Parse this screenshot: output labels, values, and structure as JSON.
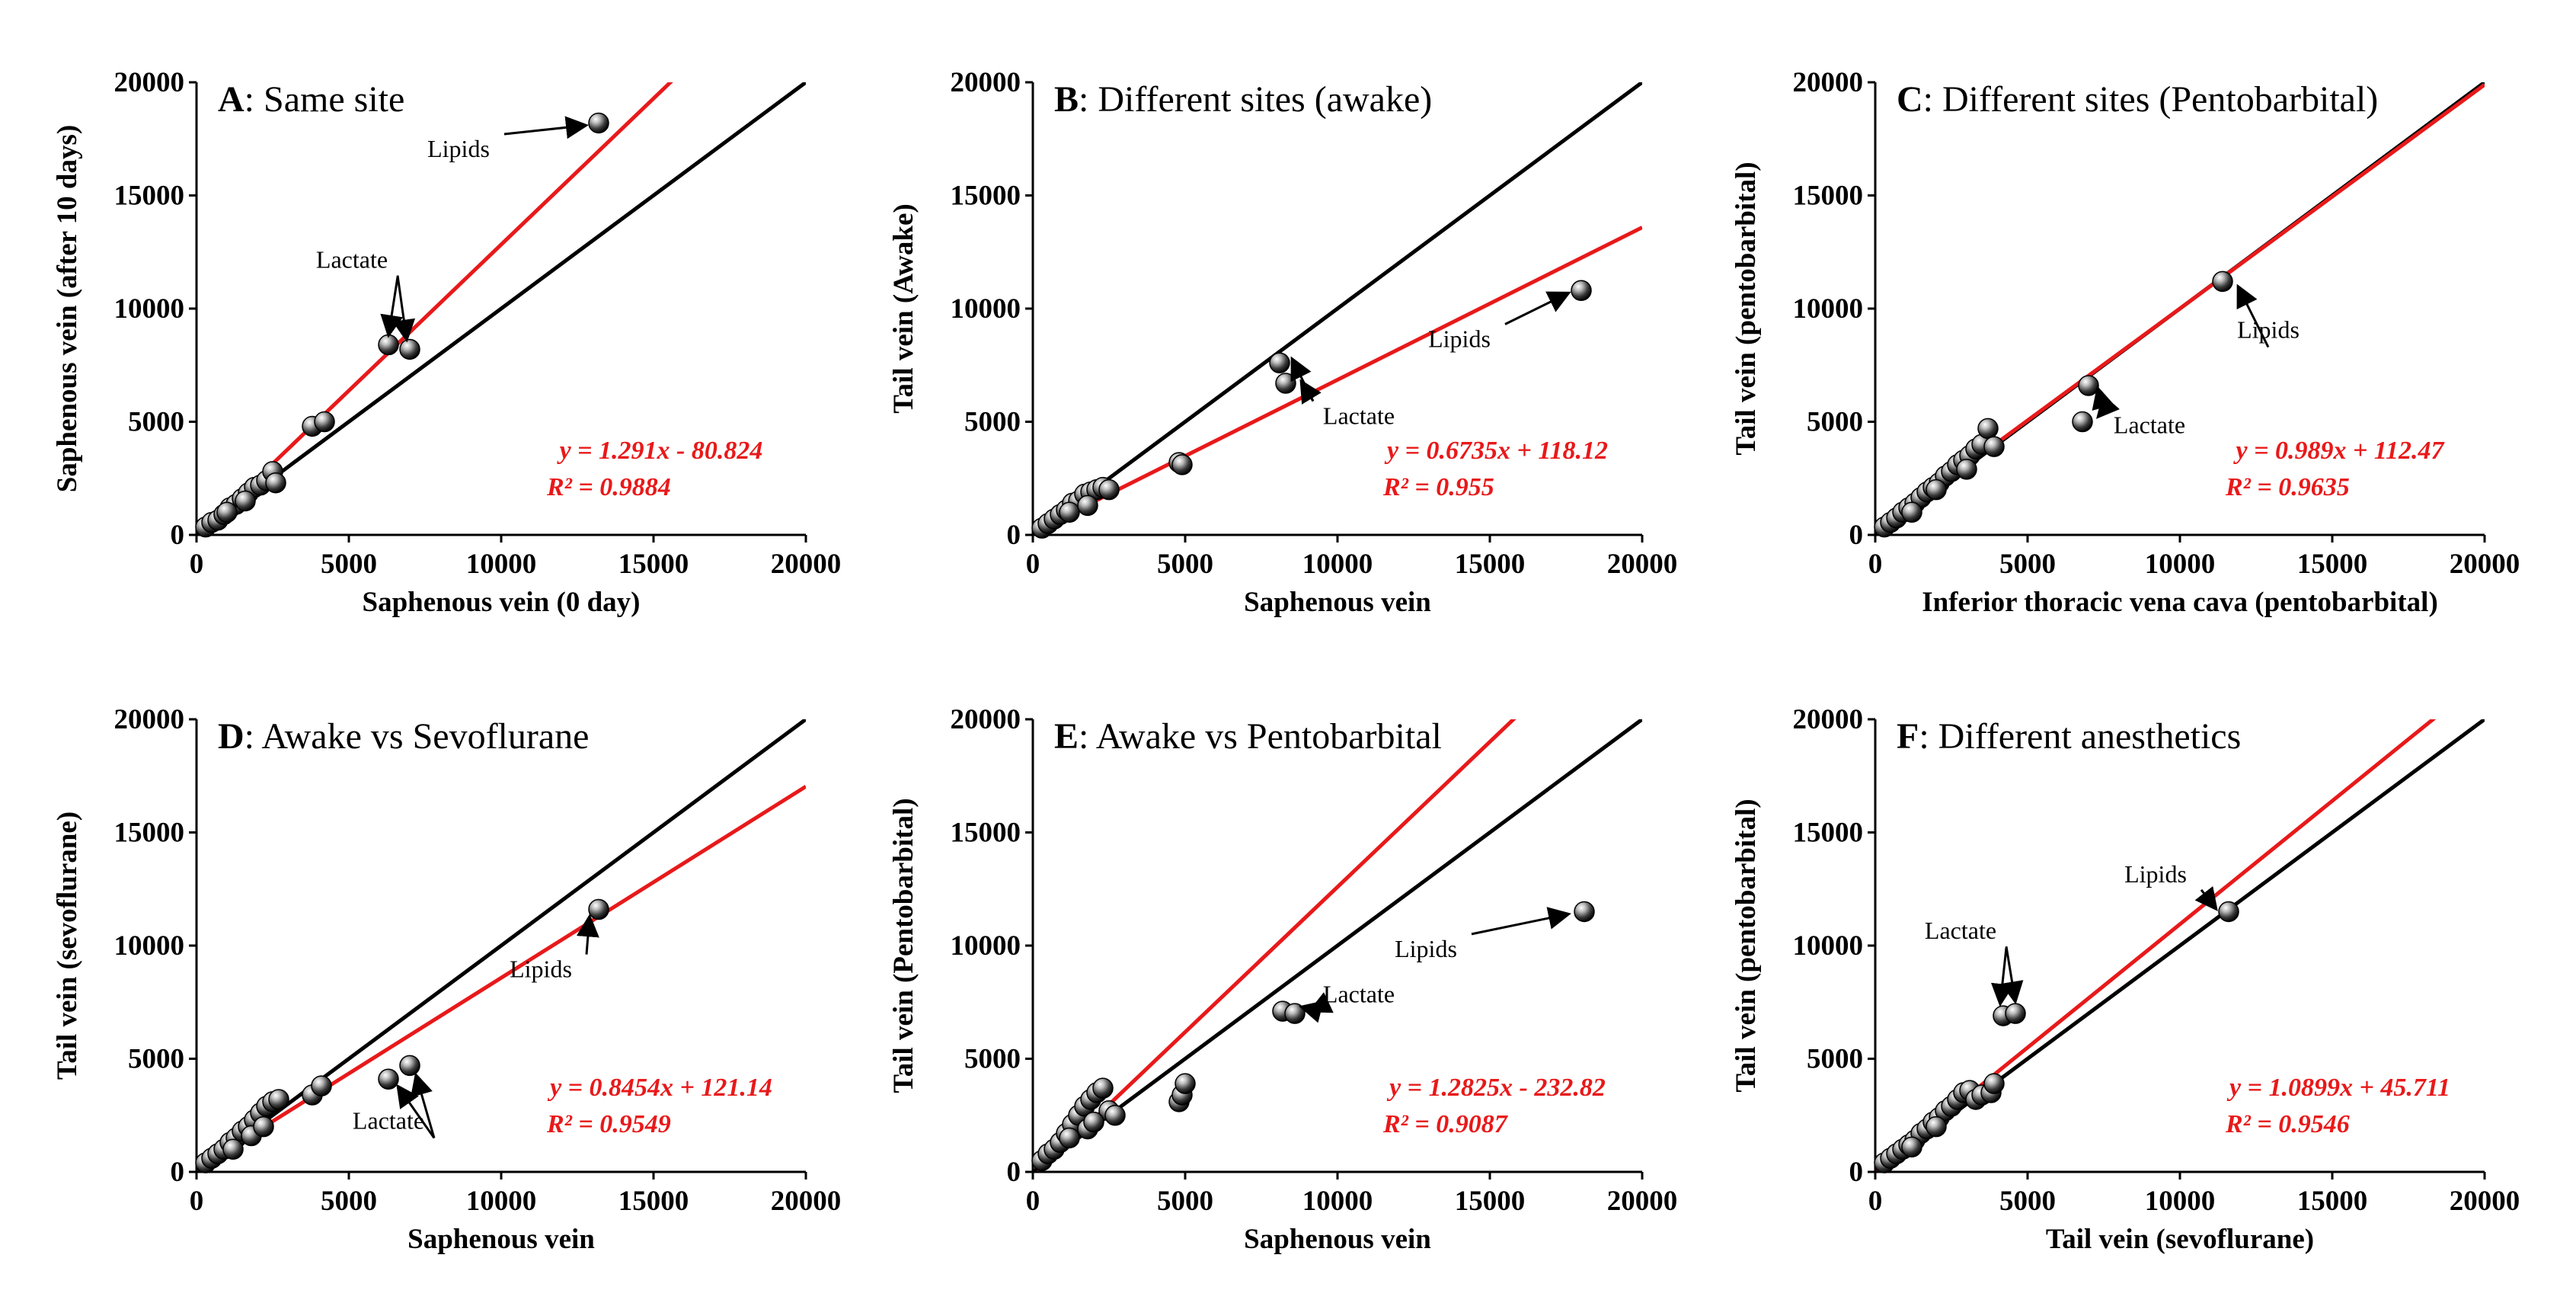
{
  "chart_data": [
    {
      "type": "scatter",
      "panel": "A",
      "title_letter": "A",
      "title_text": ": Same site",
      "xlabel": "Saphenous vein (0 day)",
      "ylabel": "Saphenous vein (after 10 days)",
      "xlim": [
        0,
        20000
      ],
      "ylim": [
        0,
        20000
      ],
      "xticks": [
        "0",
        "5000",
        "10000",
        "15000",
        "20000"
      ],
      "yticks": [
        "0",
        "5000",
        "10000",
        "15000",
        "20000"
      ],
      "identity_line": true,
      "fit": {
        "slope": 1.291,
        "intercept": -80.824
      },
      "equation": "y = 1.291x - 80.824",
      "r2": "R² = 0.9884",
      "points": [
        [
          300,
          350
        ],
        [
          500,
          550
        ],
        [
          700,
          650
        ],
        [
          900,
          900
        ],
        [
          1100,
          1200
        ],
        [
          1300,
          1350
        ],
        [
          1500,
          1600
        ],
        [
          1700,
          1850
        ],
        [
          1900,
          2100
        ],
        [
          2100,
          2200
        ],
        [
          2300,
          2400
        ],
        [
          2500,
          2800
        ],
        [
          2600,
          2300
        ],
        [
          1000,
          1000
        ],
        [
          1600,
          1500
        ],
        [
          3800,
          4800
        ],
        [
          4200,
          5000
        ],
        [
          6300,
          8400
        ],
        [
          7000,
          8200
        ],
        [
          13200,
          18200
        ]
      ],
      "annotations": [
        {
          "label": "Lipids",
          "text_x": 8600,
          "text_y": 16700,
          "targets": [
            [
              12800,
              18100
            ]
          ]
        },
        {
          "label": "Lactate",
          "text_x": 5100,
          "text_y": 11800,
          "targets": [
            [
              6300,
              8800
            ],
            [
              6900,
              8600
            ]
          ]
        }
      ]
    },
    {
      "type": "scatter",
      "panel": "B",
      "title_letter": "B",
      "title_text": ": Different sites (awake)",
      "xlabel": "Saphenous vein",
      "ylabel": "Tail vein (Awake)",
      "xlim": [
        0,
        20000
      ],
      "ylim": [
        0,
        20000
      ],
      "xticks": [
        "0",
        "5000",
        "10000",
        "15000",
        "20000"
      ],
      "yticks": [
        "0",
        "5000",
        "10000",
        "15000",
        "20000"
      ],
      "identity_line": true,
      "fit": {
        "slope": 0.6735,
        "intercept": 118.12
      },
      "equation": "y = 0.6735x + 118.12",
      "r2": "R² = 0.955",
      "points": [
        [
          300,
          300
        ],
        [
          500,
          500
        ],
        [
          700,
          700
        ],
        [
          900,
          900
        ],
        [
          1100,
          1100
        ],
        [
          1300,
          1400
        ],
        [
          1500,
          1500
        ],
        [
          1700,
          1800
        ],
        [
          1900,
          1900
        ],
        [
          2100,
          2000
        ],
        [
          2300,
          2100
        ],
        [
          2500,
          2000
        ],
        [
          1200,
          1000
        ],
        [
          1800,
          1300
        ],
        [
          4800,
          3200
        ],
        [
          4900,
          3100
        ],
        [
          8100,
          7600
        ],
        [
          8300,
          6700
        ],
        [
          18000,
          10800
        ]
      ],
      "annotations": [
        {
          "label": "Lipids",
          "text_x": 14000,
          "text_y": 8300,
          "targets": [
            [
              17600,
              10700
            ]
          ]
        },
        {
          "label": "Lactate",
          "text_x": 10700,
          "text_y": 4900,
          "targets": [
            [
              8500,
              7800
            ],
            [
              8800,
              6800
            ]
          ]
        }
      ]
    },
    {
      "type": "scatter",
      "panel": "C",
      "title_letter": "C",
      "title_text": ": Different sites (Pentobarbital)",
      "xlabel": "Inferior thoracic vena cava (pentobarbital)",
      "ylabel": "Tail vein (pentobarbital)",
      "xlim": [
        0,
        20000
      ],
      "ylim": [
        0,
        20000
      ],
      "xticks": [
        "0",
        "5000",
        "10000",
        "15000",
        "20000"
      ],
      "yticks": [
        "0",
        "5000",
        "10000",
        "15000",
        "20000"
      ],
      "identity_line": true,
      "fit": {
        "slope": 0.989,
        "intercept": 112.47
      },
      "equation": "y = 0.989x + 112.47",
      "r2": "R² = 0.9635",
      "points": [
        [
          300,
          350
        ],
        [
          500,
          550
        ],
        [
          700,
          750
        ],
        [
          900,
          1000
        ],
        [
          1100,
          1200
        ],
        [
          1300,
          1400
        ],
        [
          1500,
          1650
        ],
        [
          1700,
          1900
        ],
        [
          1900,
          2100
        ],
        [
          2100,
          2300
        ],
        [
          2300,
          2600
        ],
        [
          2500,
          2800
        ],
        [
          2700,
          3100
        ],
        [
          2900,
          3300
        ],
        [
          3100,
          3500
        ],
        [
          3300,
          3800
        ],
        [
          3500,
          4000
        ],
        [
          3700,
          4700
        ],
        [
          3900,
          3900
        ],
        [
          1200,
          1000
        ],
        [
          2000,
          2000
        ],
        [
          3000,
          2900
        ],
        [
          6800,
          5000
        ],
        [
          7000,
          6600
        ],
        [
          11400,
          11200
        ]
      ],
      "annotations": [
        {
          "label": "Lipids",
          "text_x": 12900,
          "text_y": 8700,
          "targets": [
            [
              11900,
              11000
            ]
          ]
        },
        {
          "label": "Lactate",
          "text_x": 9000,
          "text_y": 4500,
          "targets": [
            [
              7300,
              6500
            ],
            [
              7300,
              5200
            ]
          ]
        }
      ]
    },
    {
      "type": "scatter",
      "panel": "D",
      "title_letter": "D",
      "title_text": ": Awake vs Sevoflurane",
      "xlabel": "Saphenous vein",
      "ylabel": "Tail vein (sevoflurane)",
      "xlim": [
        0,
        20000
      ],
      "ylim": [
        0,
        20000
      ],
      "xticks": [
        "0",
        "5000",
        "10000",
        "15000",
        "20000"
      ],
      "yticks": [
        "0",
        "5000",
        "10000",
        "15000",
        "20000"
      ],
      "identity_line": true,
      "fit": {
        "slope": 0.8454,
        "intercept": 121.14
      },
      "equation": "y = 0.8454x + 121.14",
      "r2": "R² = 0.9549",
      "points": [
        [
          300,
          400
        ],
        [
          500,
          600
        ],
        [
          700,
          800
        ],
        [
          900,
          1000
        ],
        [
          1100,
          1300
        ],
        [
          1300,
          1500
        ],
        [
          1500,
          1800
        ],
        [
          1700,
          2000
        ],
        [
          1900,
          2300
        ],
        [
          2100,
          2600
        ],
        [
          2300,
          2900
        ],
        [
          2500,
          3100
        ],
        [
          2700,
          3200
        ],
        [
          1200,
          1000
        ],
        [
          1800,
          1600
        ],
        [
          2200,
          2000
        ],
        [
          3800,
          3400
        ],
        [
          4100,
          3800
        ],
        [
          6300,
          4100
        ],
        [
          7000,
          4700
        ],
        [
          13200,
          11600
        ]
      ],
      "annotations": [
        {
          "label": "Lipids",
          "text_x": 11300,
          "text_y": 8600,
          "targets": [
            [
              12900,
              11300
            ]
          ]
        },
        {
          "label": "Lactate",
          "text_x": 6300,
          "text_y": 1900,
          "targets": [
            [
              6600,
              3800
            ],
            [
              7200,
              4300
            ]
          ]
        }
      ]
    },
    {
      "type": "scatter",
      "panel": "E",
      "title_letter": "E",
      "title_text": ": Awake vs Pentobarbital",
      "xlabel": "Saphenous vein",
      "ylabel": "Tail vein (Pentobarbital)",
      "xlim": [
        0,
        20000
      ],
      "ylim": [
        0,
        20000
      ],
      "xticks": [
        "0",
        "5000",
        "10000",
        "15000",
        "20000"
      ],
      "yticks": [
        "0",
        "5000",
        "10000",
        "15000",
        "20000"
      ],
      "identity_line": true,
      "fit": {
        "slope": 1.2825,
        "intercept": -232.82
      },
      "equation": "y = 1.2825x - 232.82",
      "r2": "R² = 0.9087",
      "points": [
        [
          300,
          500
        ],
        [
          500,
          800
        ],
        [
          700,
          1000
        ],
        [
          900,
          1300
        ],
        [
          1100,
          1700
        ],
        [
          1300,
          2100
        ],
        [
          1500,
          2500
        ],
        [
          1700,
          2900
        ],
        [
          1900,
          3200
        ],
        [
          2100,
          3500
        ],
        [
          2300,
          3700
        ],
        [
          2500,
          2700
        ],
        [
          2700,
          2500
        ],
        [
          1200,
          1500
        ],
        [
          1800,
          1900
        ],
        [
          2000,
          2200
        ],
        [
          4800,
          3100
        ],
        [
          4900,
          3400
        ],
        [
          5000,
          3900
        ],
        [
          8200,
          7100
        ],
        [
          8600,
          7000
        ],
        [
          18100,
          11500
        ]
      ],
      "annotations": [
        {
          "label": "Lipids",
          "text_x": 12900,
          "text_y": 9500,
          "targets": [
            [
              17600,
              11400
            ]
          ]
        },
        {
          "label": "Lactate",
          "text_x": 10700,
          "text_y": 7500,
          "targets": [
            [
              8800,
              7300
            ],
            [
              9100,
              7100
            ]
          ]
        }
      ]
    },
    {
      "type": "scatter",
      "panel": "F",
      "title_letter": "F",
      "title_text": ": Different anesthetics",
      "xlabel": "Tail vein (sevoflurane)",
      "ylabel": "Tail vein (pentobarbital)",
      "xlim": [
        0,
        20000
      ],
      "ylim": [
        0,
        20000
      ],
      "xticks": [
        "0",
        "5000",
        "10000",
        "15000",
        "20000"
      ],
      "yticks": [
        "0",
        "5000",
        "10000",
        "15000",
        "20000"
      ],
      "identity_line": true,
      "fit": {
        "slope": 1.0899,
        "intercept": 45.711
      },
      "equation": "y = 1.0899x + 45.711",
      "r2": "R² = 0.9546",
      "points": [
        [
          300,
          400
        ],
        [
          500,
          600
        ],
        [
          700,
          800
        ],
        [
          900,
          1000
        ],
        [
          1100,
          1200
        ],
        [
          1300,
          1400
        ],
        [
          1500,
          1700
        ],
        [
          1700,
          1900
        ],
        [
          1900,
          2200
        ],
        [
          2100,
          2400
        ],
        [
          2300,
          2700
        ],
        [
          2500,
          2900
        ],
        [
          2700,
          3200
        ],
        [
          2900,
          3500
        ],
        [
          3100,
          3600
        ],
        [
          3300,
          3200
        ],
        [
          3500,
          3400
        ],
        [
          3800,
          3500
        ],
        [
          3900,
          3900
        ],
        [
          1200,
          1100
        ],
        [
          2000,
          2000
        ],
        [
          4200,
          6900
        ],
        [
          4600,
          7000
        ],
        [
          11600,
          11500
        ]
      ],
      "annotations": [
        {
          "label": "Lipids",
          "text_x": 9200,
          "text_y": 12800,
          "targets": [
            [
              11200,
              11600
            ]
          ]
        },
        {
          "label": "Lactate",
          "text_x": 2800,
          "text_y": 10300,
          "targets": [
            [
              4100,
              7400
            ],
            [
              4600,
              7500
            ]
          ]
        }
      ]
    }
  ]
}
